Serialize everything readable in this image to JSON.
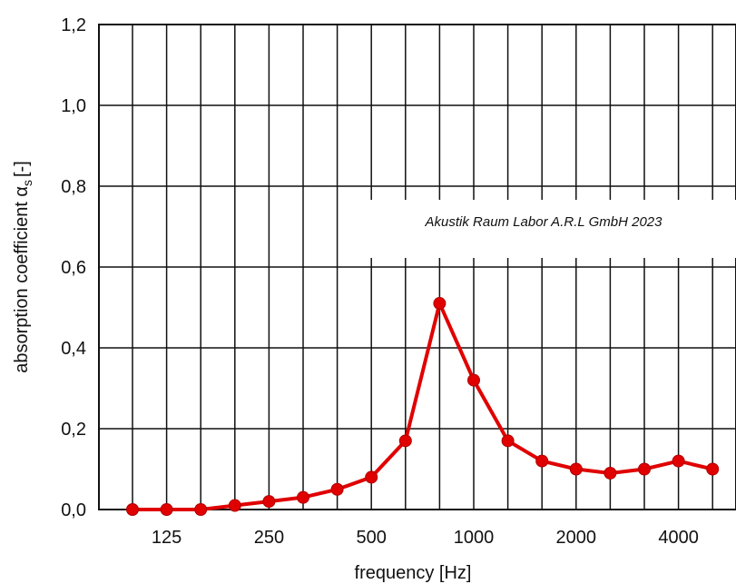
{
  "chart_data": {
    "type": "line",
    "xlabel": "frequency [Hz]",
    "ylabel": "absorption coefficient α",
    "ylabel_subscript": "s",
    "ylabel_unit": "[-]",
    "annotation": "Akustik Raum Labor A.R.L GmbH 2023",
    "x": [
      "100",
      "125",
      "160",
      "200",
      "250",
      "315",
      "400",
      "500",
      "630",
      "800",
      "1000",
      "1250",
      "1600",
      "2000",
      "2500",
      "3150",
      "4000",
      "5000"
    ],
    "x_tick_labels": [
      "125",
      "250",
      "500",
      "1000",
      "2000",
      "4000"
    ],
    "y_tick_labels": [
      "0,0",
      "0,2",
      "0,4",
      "0,6",
      "0,8",
      "1,0",
      "1,2"
    ],
    "ylim": [
      0,
      1.2
    ],
    "grid": true,
    "series": [
      {
        "color": "#e00000",
        "values": [
          0.0,
          0.0,
          0.0,
          0.01,
          0.02,
          0.03,
          0.05,
          0.08,
          0.17,
          0.51,
          0.32,
          0.17,
          0.12,
          0.1,
          0.09,
          0.1,
          0.12,
          0.1
        ]
      }
    ]
  }
}
